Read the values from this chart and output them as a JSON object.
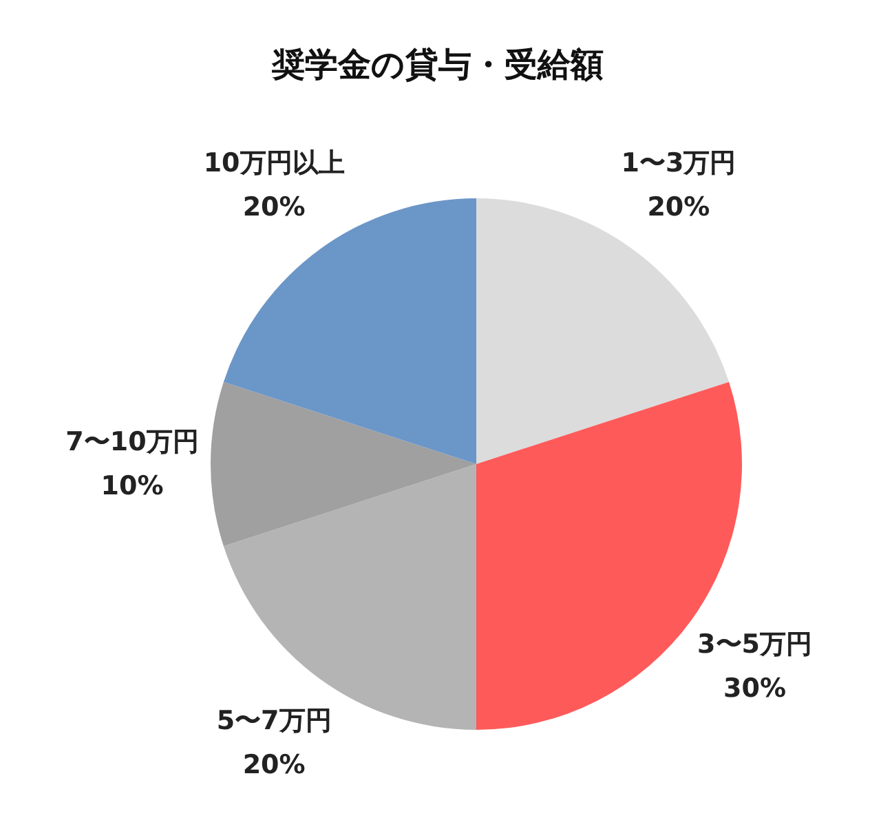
{
  "chart_data": {
    "type": "pie",
    "title": "奨学金の貸与・受給額",
    "categories": [
      "1〜3万円",
      "3〜5万円",
      "5〜7万円",
      "7〜10万円",
      "10万円以上"
    ],
    "values": [
      20,
      30,
      20,
      10,
      20
    ],
    "value_labels": [
      "20%",
      "30%",
      "20%",
      "10%",
      "20%"
    ],
    "colors": [
      "#dcdcdc",
      "#ff5a5a",
      "#b4b4b4",
      "#a0a0a0",
      "#6b96c8"
    ]
  }
}
